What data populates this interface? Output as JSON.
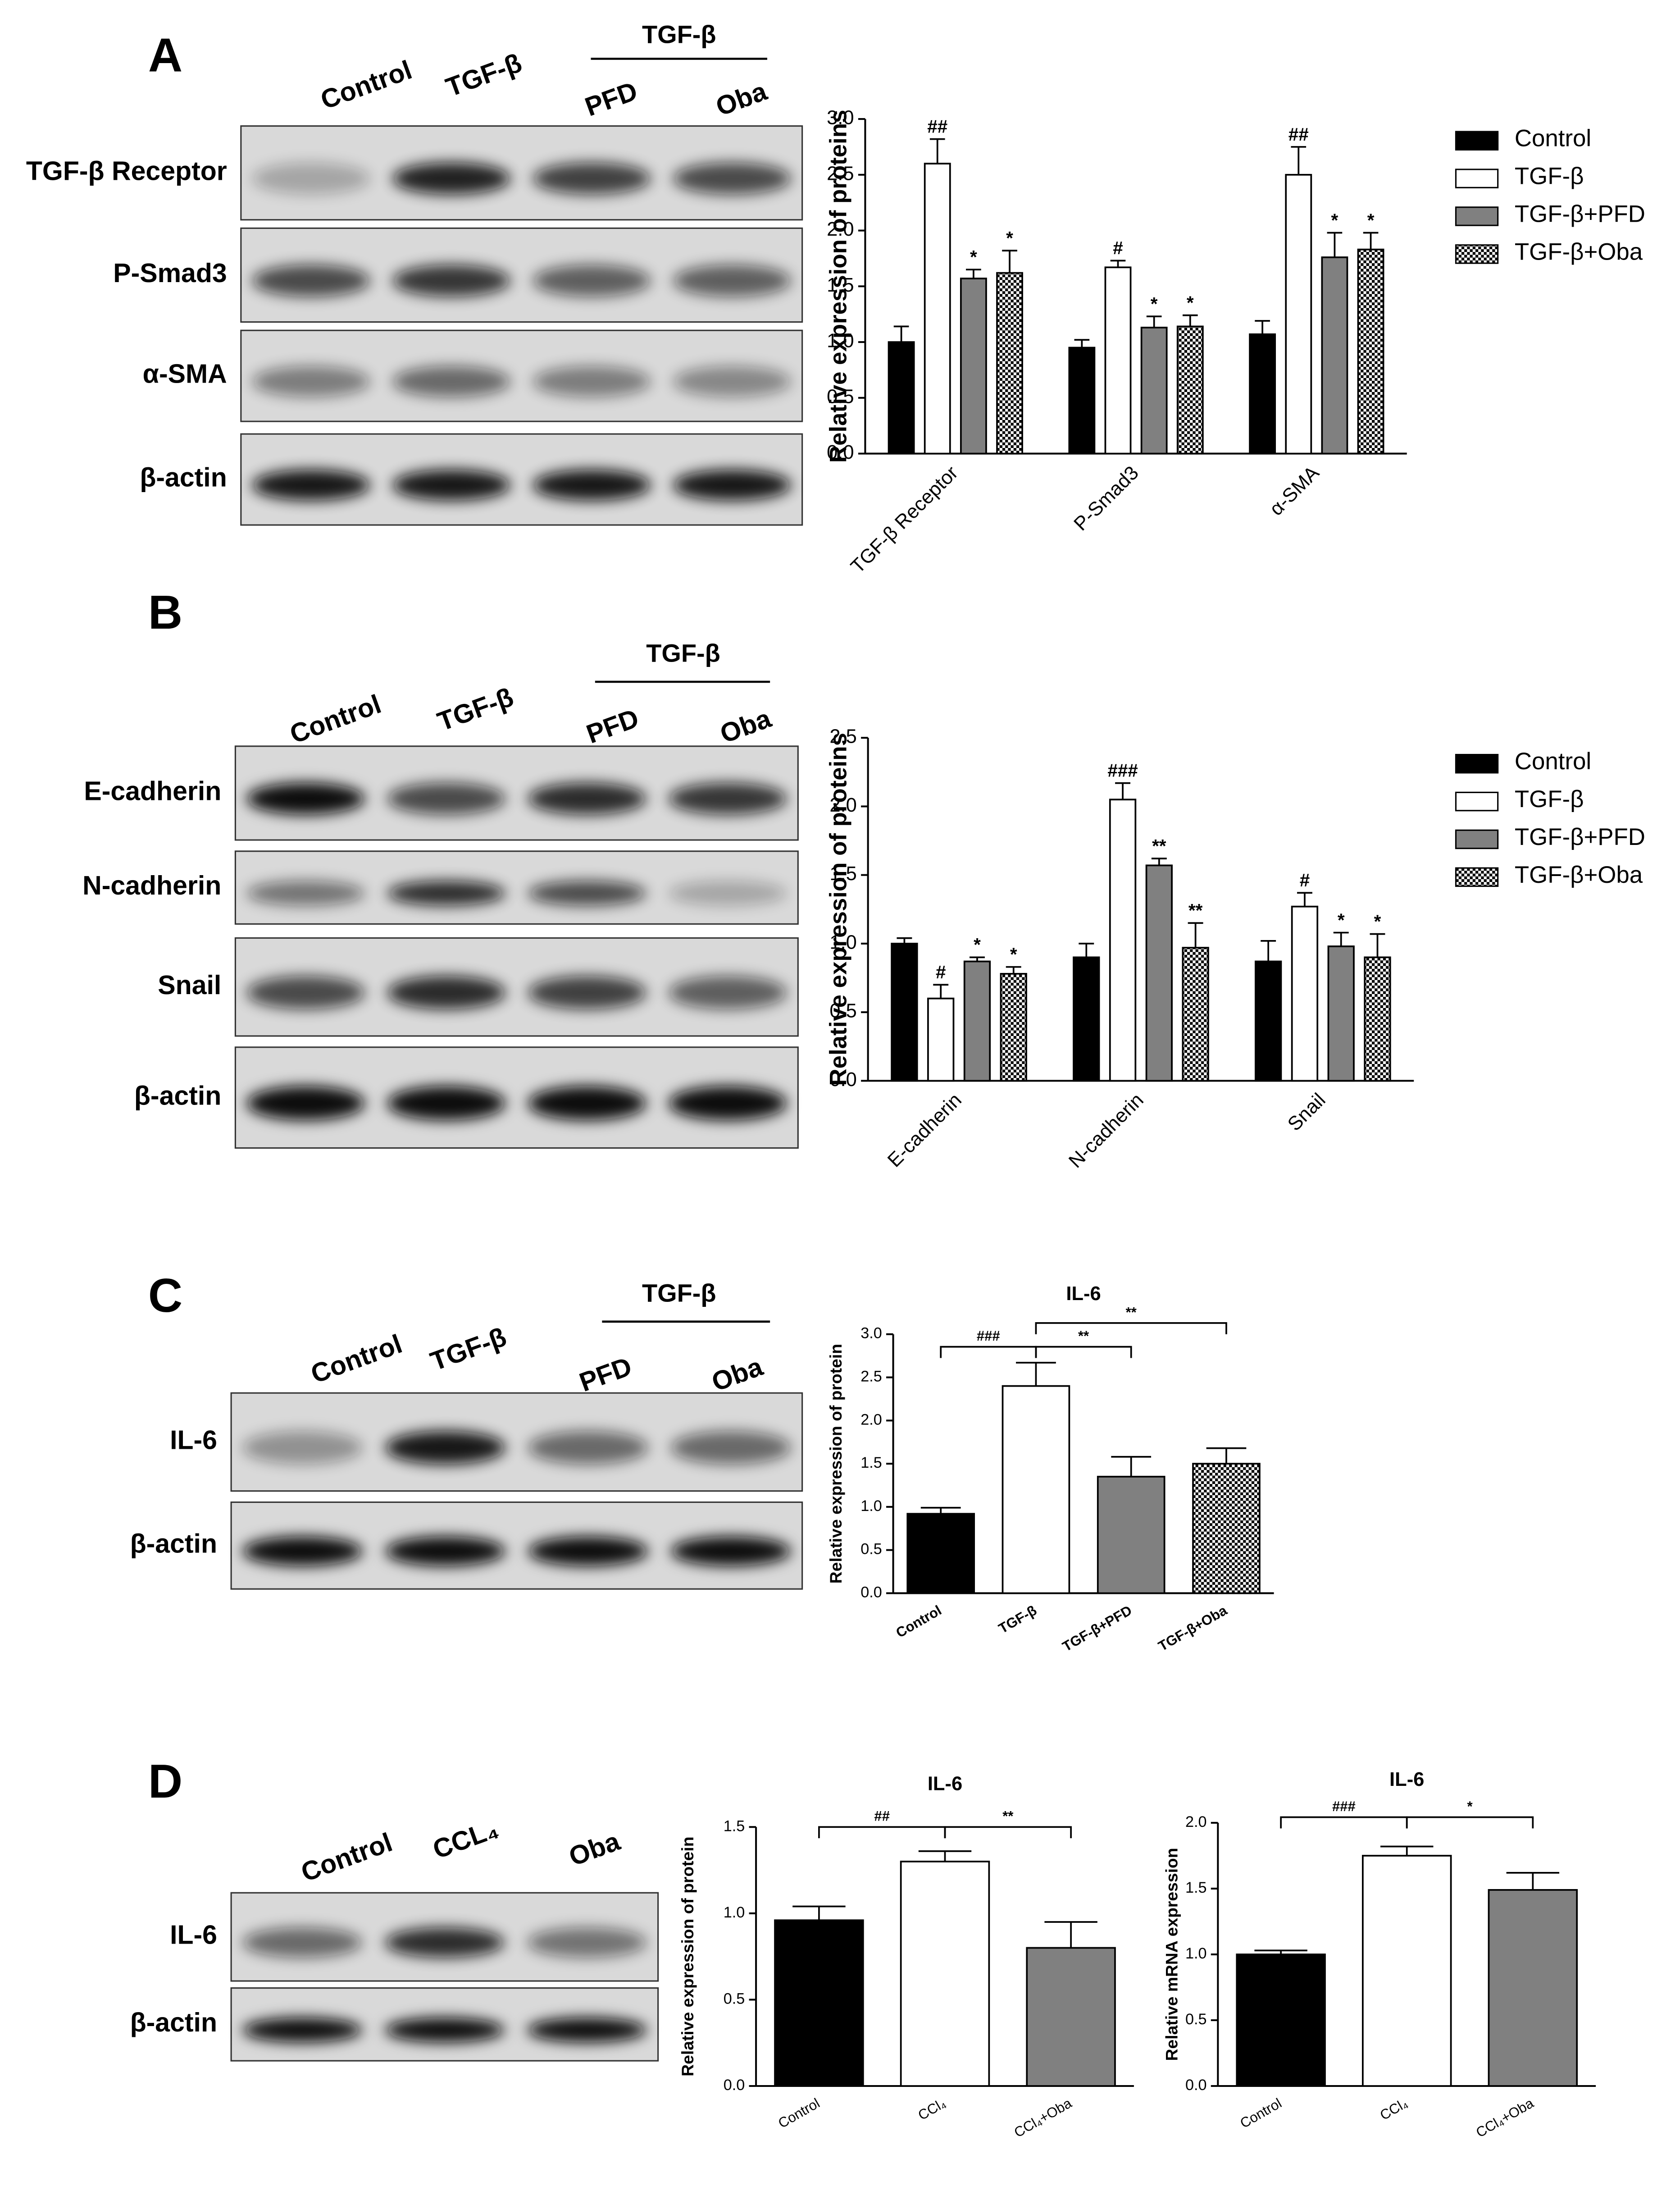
{
  "blots": [
    {
      "panel": "A",
      "group_label": "TGF-β",
      "lanes": [
        "Control",
        "TGF-β",
        "PFD",
        "Oba"
      ],
      "rows": [
        "TGF-β Receptor",
        "P-Smad3",
        "α-SMA",
        "β-actin"
      ]
    },
    {
      "panel": "B",
      "group_label": "TGF-β",
      "lanes": [
        "Control",
        "TGF-β",
        "PFD",
        "Oba"
      ],
      "rows": [
        "E-cadherin",
        "N-cadherin",
        "Snail",
        "β-actin"
      ]
    },
    {
      "panel": "C",
      "group_label": "TGF-β",
      "lanes": [
        "Control",
        "TGF-β",
        "PFD",
        "Oba"
      ],
      "rows": [
        "IL-6",
        "β-actin"
      ]
    },
    {
      "panel": "D",
      "lanes": [
        "Control",
        "CCL₄",
        "Oba"
      ],
      "rows": [
        "IL-6",
        "β-actin"
      ]
    }
  ],
  "chart_data": [
    {
      "type": "bar",
      "ylabel": "Relative expression of proteins",
      "categories": [
        "TGF-β Receptor",
        "P-Smad3",
        "α-SMA"
      ],
      "series": [
        {
          "name": "Control",
          "color": "#000000",
          "values": [
            1.0,
            0.95,
            1.07
          ],
          "errors": [
            0.14,
            0.07,
            0.12
          ]
        },
        {
          "name": "TGF-β",
          "color": "#ffffff",
          "values": [
            2.6,
            1.67,
            2.5
          ],
          "errors": [
            0.22,
            0.06,
            0.25
          ],
          "annotations": [
            "##",
            "#",
            "##"
          ]
        },
        {
          "name": "TGF-β+PFD",
          "color": "#808080",
          "values": [
            1.57,
            1.13,
            1.76
          ],
          "errors": [
            0.08,
            0.1,
            0.22
          ],
          "annotations": [
            "*",
            "*",
            "*"
          ]
        },
        {
          "name": "TGF-β+Oba",
          "color": "#000000",
          "pattern": "checkerboard",
          "values": [
            1.62,
            1.14,
            1.83
          ],
          "errors": [
            0.2,
            0.1,
            0.15
          ],
          "annotations": [
            "*",
            "*",
            "*"
          ]
        }
      ],
      "ylim": [
        0,
        3
      ],
      "yticks": [
        {
          "value": 0,
          "label": "0.0"
        },
        0.5,
        {
          "value": 1,
          "label": "1.0"
        },
        1.5,
        {
          "value": 2,
          "label": "2.0"
        },
        2.5,
        {
          "value": 3,
          "label": "3.0"
        }
      ],
      "legend": "right"
    },
    {
      "type": "bar",
      "ylabel": "Relative expression of proteins",
      "categories": [
        "E-cadherin",
        "N-cadherin",
        "Snail"
      ],
      "series": [
        {
          "name": "Control",
          "color": "#000000",
          "values": [
            1.0,
            0.9,
            0.87
          ],
          "errors": [
            0.04,
            0.1,
            0.15
          ]
        },
        {
          "name": "TGF-β",
          "color": "#ffffff",
          "values": [
            0.6,
            2.05,
            1.27
          ],
          "errors": [
            0.1,
            0.12,
            0.1
          ],
          "annotations": [
            "#",
            "###",
            "#"
          ]
        },
        {
          "name": "TGF-β+PFD",
          "color": "#808080",
          "values": [
            0.87,
            1.57,
            0.98
          ],
          "errors": [
            0.03,
            0.05,
            0.1
          ],
          "annotations": [
            "*",
            "**",
            "*"
          ]
        },
        {
          "name": "TGF-β+Oba",
          "color": "#000000",
          "pattern": "checkerboard",
          "values": [
            0.78,
            0.97,
            0.9
          ],
          "errors": [
            0.05,
            0.18,
            0.17
          ],
          "annotations": [
            "*",
            "**",
            "*"
          ]
        }
      ],
      "ylim": [
        0,
        2.5
      ],
      "yticks": [
        {
          "value": 0,
          "label": "0.0"
        },
        0.5,
        {
          "value": 1,
          "label": "1.0"
        },
        1.5,
        {
          "value": 2,
          "label": "2.0"
        },
        2.5
      ],
      "legend": "right"
    },
    {
      "type": "bar",
      "title": "IL-6",
      "ylabel": "Relative expression of protein",
      "categories": [
        "Control",
        "TGF-β",
        "TGF-β+PFD",
        "TGF-β+Oba"
      ],
      "values": [
        0.92,
        2.4,
        1.35,
        1.5
      ],
      "errors": [
        0.07,
        0.27,
        0.23,
        0.18
      ],
      "colors": [
        "#000000",
        "#ffffff",
        "#808080",
        "#000000"
      ],
      "patterns": [
        null,
        null,
        null,
        "checkerboard"
      ],
      "brackets": [
        {
          "between": [
            0,
            1
          ],
          "label": "###"
        },
        {
          "between": [
            1,
            2
          ],
          "label": "**"
        },
        {
          "between": [
            1,
            3
          ],
          "label": "**"
        }
      ],
      "ylim": [
        0,
        3
      ],
      "yticks": [
        {
          "value": 0,
          "label": "0.0"
        },
        0.5,
        {
          "value": 1,
          "label": "1.0"
        },
        1.5,
        {
          "value": 2,
          "label": "2.0"
        },
        2.5,
        {
          "value": 3,
          "label": "3.0"
        }
      ]
    },
    {
      "type": "bar",
      "title": "IL-6",
      "ylabel": "Relative expression of protein",
      "categories": [
        "Control",
        "CCl₄",
        "CCl₄+Oba"
      ],
      "values": [
        0.96,
        1.3,
        0.8
      ],
      "errors": [
        0.08,
        0.06,
        0.15
      ],
      "colors": [
        "#000000",
        "#ffffff",
        "#808080"
      ],
      "brackets": [
        {
          "between": [
            0,
            1
          ],
          "label": "##"
        },
        {
          "between": [
            1,
            2
          ],
          "label": "**"
        }
      ],
      "ylim": [
        0,
        1.5
      ],
      "yticks": [
        {
          "value": 0,
          "label": "0.0"
        },
        0.5,
        {
          "value": 1,
          "label": "1.0"
        },
        1.5
      ]
    },
    {
      "type": "bar",
      "title": "IL-6",
      "ylabel": "Relative mRNA expression",
      "categories": [
        "Control",
        "CCl₄",
        "CCl₄+Oba"
      ],
      "values": [
        1.0,
        1.75,
        1.49
      ],
      "errors": [
        0.03,
        0.07,
        0.13
      ],
      "colors": [
        "#000000",
        "#ffffff",
        "#808080"
      ],
      "brackets": [
        {
          "between": [
            0,
            1
          ],
          "label": "###"
        },
        {
          "between": [
            1,
            2
          ],
          "label": "*"
        }
      ],
      "ylim": [
        0,
        2
      ],
      "yticks": [
        {
          "value": 0,
          "label": "0.0"
        },
        0.5,
        {
          "value": 1,
          "label": "1.0"
        },
        1.5,
        {
          "value": 2,
          "label": "2.0"
        }
      ]
    }
  ]
}
